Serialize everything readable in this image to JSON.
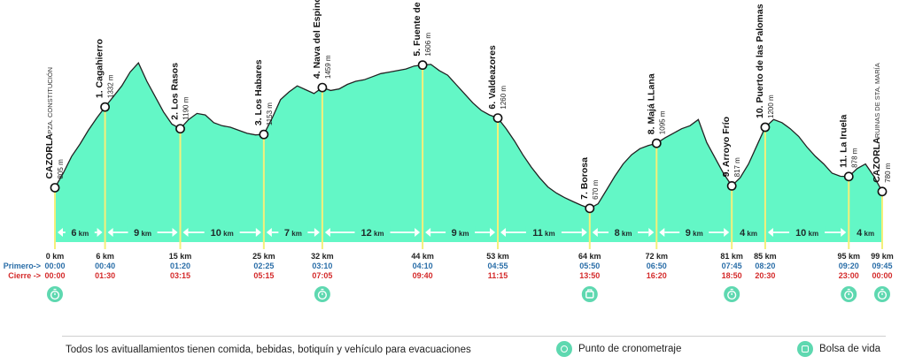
{
  "colors": {
    "fill": "#63f7c6",
    "edge": "#222222",
    "station_line": "#f4f07a",
    "band": "#63f7c6",
    "primero": "#2a6ea8",
    "cierre": "#d42a2a",
    "icon": "#5ed8b0"
  },
  "chart_data": {
    "type": "area",
    "title": "",
    "xlabel": "km",
    "ylabel": "m",
    "xlim": [
      0,
      99
    ],
    "ylim": [
      600,
      1800
    ],
    "profile_x": [
      0,
      1,
      2,
      3,
      4,
      5,
      6,
      7,
      8,
      9,
      10,
      11,
      12,
      13,
      14,
      15,
      16,
      17,
      18,
      19,
      20,
      21,
      22,
      23,
      24,
      25,
      26,
      27,
      28,
      29,
      30,
      31,
      32,
      33,
      34,
      35,
      36,
      37,
      38,
      39,
      40,
      41,
      42,
      43,
      44,
      45,
      46,
      47,
      48,
      49,
      50,
      51,
      52,
      53,
      54,
      55,
      56,
      57,
      58,
      59,
      60,
      61,
      62,
      63,
      64,
      65,
      66,
      67,
      68,
      69,
      70,
      71,
      72,
      73,
      74,
      75,
      76,
      77,
      78,
      79,
      80,
      81,
      82,
      83,
      84,
      85,
      86,
      87,
      88,
      89,
      90,
      91,
      92,
      93,
      94,
      95,
      96,
      97,
      98,
      99
    ],
    "profile_y": [
      805,
      900,
      1010,
      1090,
      1180,
      1260,
      1332,
      1400,
      1470,
      1560,
      1620,
      1500,
      1400,
      1300,
      1220,
      1190,
      1250,
      1290,
      1280,
      1230,
      1210,
      1200,
      1180,
      1160,
      1150,
      1153,
      1260,
      1380,
      1430,
      1470,
      1445,
      1420,
      1459,
      1440,
      1450,
      1480,
      1500,
      1510,
      1530,
      1550,
      1560,
      1570,
      1580,
      1600,
      1606,
      1610,
      1570,
      1540,
      1480,
      1420,
      1360,
      1310,
      1280,
      1260,
      1190,
      1110,
      1020,
      940,
      870,
      810,
      770,
      740,
      715,
      690,
      670,
      700,
      790,
      880,
      960,
      1020,
      1060,
      1080,
      1095,
      1130,
      1160,
      1190,
      1210,
      1250,
      1100,
      1000,
      900,
      817,
      870,
      960,
      1080,
      1200,
      1250,
      1230,
      1190,
      1140,
      1070,
      1010,
      960,
      900,
      880,
      878,
      930,
      960,
      880,
      780
    ],
    "stations": [
      {
        "label": "CAZORLA",
        "sub": "PZA. CONSTITUCIÓN",
        "alt": "805 m",
        "km": 0,
        "elev": 805,
        "km_label": "0 km",
        "primero": "00:00",
        "cierre": "00:00",
        "icon": "timer"
      },
      {
        "label": "1. Cagahierro",
        "alt": "1332 m",
        "km": 6,
        "elev": 1332,
        "km_label": "6 km",
        "primero": "00:40",
        "cierre": "01:30"
      },
      {
        "label": "2. Los Rasos",
        "alt": "1190 m",
        "km": 15,
        "elev": 1190,
        "km_label": "15 km",
        "primero": "01:20",
        "cierre": "03:15"
      },
      {
        "label": "3. Los Habares",
        "alt": "1153 m",
        "km": 25,
        "elev": 1153,
        "km_label": "25 km",
        "primero": "02:25",
        "cierre": "05:15"
      },
      {
        "label": "4. Nava del Espino",
        "alt": "1459 m",
        "km": 32,
        "elev": 1459,
        "km_label": "32 km",
        "primero": "03:10",
        "cierre": "07:05",
        "icon": "timer"
      },
      {
        "label": "5. Fuente de la Umbría",
        "alt": "1606 m",
        "km": 44,
        "elev": 1606,
        "km_label": "44 km",
        "primero": "04:10",
        "cierre": "09:40"
      },
      {
        "label": "6. Valdeazores",
        "alt": "1260 m",
        "km": 53,
        "elev": 1260,
        "km_label": "53 km",
        "primero": "04:55",
        "cierre": "11:15"
      },
      {
        "label": "7. Borosa",
        "alt": "670 m",
        "km": 64,
        "elev": 670,
        "km_label": "64 km",
        "primero": "05:50",
        "cierre": "13:50",
        "icon": "bag"
      },
      {
        "label": "8. Majá LLana",
        "alt": "1095 m",
        "km": 72,
        "elev": 1095,
        "km_label": "72 km",
        "primero": "06:50",
        "cierre": "16:20"
      },
      {
        "label": "9. Arroyo Frío",
        "alt": "817 m",
        "km": 81,
        "elev": 817,
        "km_label": "81 km",
        "primero": "07:45",
        "cierre": "18:50",
        "icon": "timer"
      },
      {
        "label": "10. Puerto de las Palomas",
        "alt": "1200 m",
        "km": 85,
        "elev": 1200,
        "km_label": "85 km",
        "primero": "08:20",
        "cierre": "20:30"
      },
      {
        "label": "11. La Iruela",
        "alt": "878 m",
        "km": 95,
        "elev": 878,
        "km_label": "95 km",
        "primero": "09:20",
        "cierre": "23:00",
        "icon": "timer"
      },
      {
        "label": "CAZORLA",
        "sub": "RUINAS DE STA. MARÍA",
        "alt": "780 m",
        "km": 99,
        "elev": 780,
        "km_label": "99 km",
        "primero": "09:45",
        "cierre": "00:00",
        "icon": "timer"
      }
    ],
    "segments": [
      {
        "value": "6",
        "unit": "km"
      },
      {
        "value": "9",
        "unit": "km"
      },
      {
        "value": "10",
        "unit": "km"
      },
      {
        "value": "7",
        "unit": "km"
      },
      {
        "value": "12",
        "unit": "km"
      },
      {
        "value": "9",
        "unit": "km"
      },
      {
        "value": "11",
        "unit": "km"
      },
      {
        "value": "8",
        "unit": "km"
      },
      {
        "value": "9",
        "unit": "km"
      },
      {
        "value": "4",
        "unit": "km"
      },
      {
        "value": "10",
        "unit": "km"
      },
      {
        "value": "4",
        "unit": "km"
      }
    ],
    "row_labels": {
      "primero": "Primero->",
      "cierre": "Cierre ->"
    }
  },
  "legend": {
    "note": "Todos los avituallamientos tienen comida, bebidas, botiquín y vehículo para evacuaciones",
    "timer_label": "Punto de cronometraje",
    "bag_label": "Bolsa de vida"
  }
}
